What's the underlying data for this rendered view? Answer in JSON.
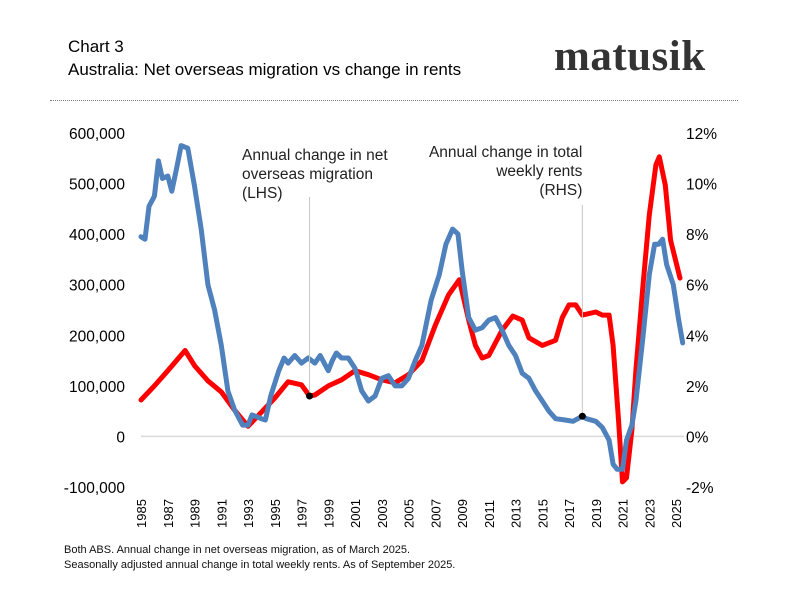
{
  "header": {
    "chart_number": "Chart 3",
    "title": "Australia:  Net overseas migration vs change in rents",
    "logo_text": "matusik"
  },
  "footer": {
    "line1": "Both ABS.  Annual change in net overseas migration, as of March 2025.",
    "line2": "Seasonally adjusted annual change in total weekly rents.  As of September 2025."
  },
  "chart_data": {
    "type": "line",
    "title": "Australia:  Net overseas migration vs change in rents",
    "x_ticks": [
      "1985",
      "1987",
      "1989",
      "1991",
      "1993",
      "1995",
      "1997",
      "1999",
      "2001",
      "2003",
      "2005",
      "2007",
      "2009",
      "2011",
      "2013",
      "2015",
      "2017",
      "2019",
      "2021",
      "2023",
      "2025"
    ],
    "xlim": [
      1985,
      2025.6
    ],
    "y_left": {
      "ylim": [
        -100000,
        600000
      ],
      "ticks": [
        "-100,000",
        "0",
        "100,000",
        "200,000",
        "300,000",
        "400,000",
        "500,000",
        "600,000"
      ]
    },
    "y_right": {
      "ylim": [
        -2,
        12
      ],
      "ticks": [
        "-2%",
        "0%",
        "2%",
        "4%",
        "6%",
        "8%",
        "10%",
        "12%"
      ]
    },
    "grid": "zero line only",
    "colors": {
      "migration": "#ff0000",
      "rents": "#4f81bd",
      "zero_line": "#d9d9d9"
    },
    "annotations": [
      {
        "lines": [
          "Annual change in net",
          "overseas migration",
          "(LHS)"
        ],
        "series": "migration",
        "x": 1997.6,
        "y": 80000
      },
      {
        "lines": [
          "Annual change in total",
          "weekly rents",
          "(RHS)"
        ],
        "series": "rents",
        "x": 2018.0,
        "y": 0.8
      }
    ],
    "series": [
      {
        "id": "migration",
        "axis": "left",
        "color": "#ff0000",
        "x": [
          1985,
          1986,
          1987,
          1988.3,
          1989,
          1990,
          1991,
          1992,
          1993,
          1994,
          1995,
          1996,
          1997,
          1997.6,
          1998,
          1999,
          2000,
          2001,
          2002,
          2003,
          2004,
          2005,
          2006,
          2007,
          2008,
          2008.8,
          2009.5,
          2010,
          2010.5,
          2011,
          2012,
          2012.8,
          2013.5,
          2014,
          2015,
          2016,
          2016.5,
          2017,
          2017.5,
          2018,
          2019,
          2019.5,
          2020,
          2020.3,
          2020.7,
          2021,
          2021.3,
          2021.7,
          2022,
          2022.5,
          2023,
          2023.5,
          2023.75,
          2024.2,
          2024.6,
          2025,
          2025.3
        ],
        "y": [
          72000,
          100000,
          130000,
          170000,
          140000,
          110000,
          88000,
          52000,
          20000,
          48000,
          76000,
          108000,
          102000,
          80000,
          82000,
          100000,
          112000,
          130000,
          122000,
          112000,
          106000,
          122000,
          150000,
          220000,
          280000,
          310000,
          230000,
          180000,
          155000,
          160000,
          210000,
          238000,
          230000,
          195000,
          180000,
          190000,
          235000,
          260000,
          260000,
          240000,
          246000,
          240000,
          240000,
          180000,
          33000,
          -90000,
          -82000,
          13000,
          131000,
          290000,
          438000,
          537000,
          553000,
          497000,
          388000,
          345000,
          313000
        ]
      },
      {
        "id": "rents",
        "axis": "right",
        "color": "#4f81bd",
        "x": [
          1985,
          1985.3,
          1985.6,
          1986,
          1986.3,
          1986.6,
          1987,
          1987.3,
          1987.7,
          1988,
          1988.5,
          1989,
          1989.5,
          1990,
          1990.5,
          1991,
          1991.5,
          1992,
          1992.6,
          1993,
          1993.3,
          1994,
          1994.3,
          1994.7,
          1995.3,
          1995.7,
          1996,
          1996.5,
          1997,
          1997.5,
          1998,
          1998.4,
          1999,
          1999.3,
          1999.6,
          2000,
          2000.5,
          2001,
          2001.5,
          2002,
          2002.5,
          2003,
          2003.5,
          2004,
          2004.5,
          2005,
          2005.5,
          2006,
          2006.7,
          2007.3,
          2007.8,
          2008.3,
          2008.7,
          2009,
          2009.5,
          2010,
          2010.5,
          2011,
          2011.5,
          2012,
          2012.5,
          2013,
          2013.5,
          2014,
          2014.5,
          2015,
          2015.5,
          2016,
          2016.7,
          2017.3,
          2018,
          2018.3,
          2019,
          2019.5,
          2020,
          2020.3,
          2020.6,
          2021,
          2021.3,
          2021.7,
          2022,
          2022.5,
          2023,
          2023.4,
          2023.7,
          2024,
          2024.3,
          2024.8,
          2025.2,
          2025.5
        ],
        "y": [
          7.9,
          7.8,
          9.1,
          9.5,
          10.9,
          10.2,
          10.3,
          9.7,
          10.7,
          11.5,
          11.4,
          9.9,
          8.2,
          6.0,
          5.0,
          3.6,
          1.8,
          1.05,
          0.45,
          0.45,
          0.85,
          0.7,
          0.65,
          1.6,
          2.6,
          3.1,
          2.9,
          3.2,
          2.9,
          3.1,
          2.9,
          3.2,
          2.6,
          3.0,
          3.3,
          3.1,
          3.1,
          2.7,
          1.8,
          1.4,
          1.6,
          2.3,
          2.4,
          2.0,
          2.0,
          2.3,
          3.0,
          3.6,
          5.4,
          6.4,
          7.6,
          8.2,
          8.0,
          6.6,
          4.7,
          4.2,
          4.3,
          4.6,
          4.7,
          4.2,
          3.6,
          3.2,
          2.5,
          2.3,
          1.8,
          1.4,
          1.0,
          0.7,
          0.65,
          0.6,
          0.8,
          0.7,
          0.6,
          0.35,
          -0.15,
          -1.1,
          -1.3,
          -1.3,
          -0.15,
          0.45,
          1.4,
          3.8,
          6.4,
          7.6,
          7.6,
          7.8,
          6.8,
          6.0,
          4.6,
          3.7
        ]
      }
    ]
  }
}
